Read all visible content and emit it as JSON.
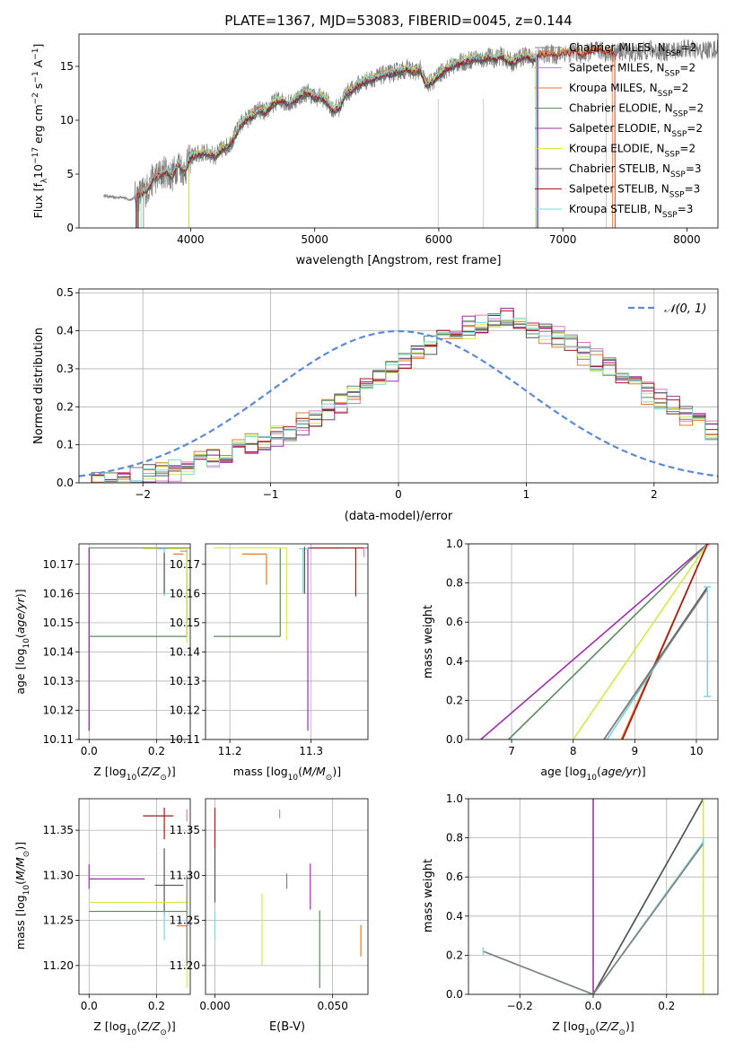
{
  "figure_title": "PLATE=1367, MJD=53083, FIBERID=0045, z=0.144",
  "models": [
    {
      "label": "Chabrier MILES, N$_{SSP}$=2",
      "label_base": "Chabrier MILES, N",
      "label_sub": "SSP",
      "label_tail": "=2",
      "color": "#808080"
    },
    {
      "label": "Salpeter MILES, N$_{SSP}$=2",
      "label_base": "Salpeter MILES, N",
      "label_sub": "SSP",
      "label_tail": "=2",
      "color": "#e377c2"
    },
    {
      "label": "Kroupa MILES, N$_{SSP}$=2",
      "label_base": "Kroupa MILES, N",
      "label_sub": "SSP",
      "label_tail": "=2",
      "color": "#e07b2a"
    },
    {
      "label": "Chabrier ELODIE, N$_{SSP}$=2",
      "label_base": "Chabrier ELODIE, N",
      "label_sub": "SSP",
      "label_tail": "=2",
      "color": "#5c8a5c"
    },
    {
      "label": "Salpeter ELODIE, N$_{SSP}$=2",
      "label_base": "Salpeter ELODIE, N",
      "label_sub": "SSP",
      "label_tail": "=2",
      "color": "#9b2fae"
    },
    {
      "label": "Kroupa ELODIE, N$_{SSP}$=2",
      "label_base": "Kroupa ELODIE, N",
      "label_sub": "SSP",
      "label_tail": "=2",
      "color": "#d4e84a"
    },
    {
      "label": "Chabrier STELIB, N$_{SSP}$=3",
      "label_base": "Chabrier STELIB, N",
      "label_sub": "SSP",
      "label_tail": "=3",
      "color": "#555555"
    },
    {
      "label": "Salpeter STELIB, N$_{SSP}$=3",
      "label_base": "Salpeter STELIB, N",
      "label_sub": "SSP",
      "label_tail": "=3",
      "color": "#a01a1a"
    },
    {
      "label": "Kroupa STELIB, N$_{SSP}$=3",
      "label_base": "Kroupa STELIB, N",
      "label_sub": "SSP",
      "label_tail": "=3",
      "color": "#7fd4d8"
    }
  ],
  "chart_data": [
    {
      "id": "spectrum",
      "type": "line",
      "xlabel": "wavelength [Angstrom, rest frame]",
      "ylabel": "Flux [f$_\\lambda$10$^{-17}$ erg cm$^{-2}$ s$^{-1}$ A$^{-1}$]",
      "ylabel_display": "Flux [fλ10⁻¹⁷ erg cm⁻² s⁻¹ A⁻¹]",
      "xlim": [
        3100,
        8250
      ],
      "ylim": [
        0,
        18
      ],
      "xticks": [
        4000,
        5000,
        6000,
        7000,
        8000
      ],
      "yticks": [
        0,
        5,
        10,
        15
      ],
      "legend": "top-right",
      "data_color": "#808080",
      "model_range": [
        3550,
        7420
      ],
      "data_x": [
        3300,
        3350,
        3400,
        3450,
        3500,
        3550,
        3600,
        3650,
        3700,
        3750,
        3800,
        3850,
        3900,
        3950,
        4000,
        4050,
        4100,
        4150,
        4200,
        4250,
        4300,
        4350,
        4400,
        4450,
        4500,
        4550,
        4600,
        4650,
        4700,
        4750,
        4800,
        4850,
        4900,
        4950,
        5000,
        5050,
        5100,
        5150,
        5200,
        5250,
        5300,
        5350,
        5400,
        5450,
        5500,
        5550,
        5600,
        5650,
        5700,
        5750,
        5800,
        5850,
        5900,
        5950,
        6000,
        6050,
        6100,
        6150,
        6200,
        6250,
        6300,
        6350,
        6400,
        6450,
        6500,
        6550,
        6600,
        6650,
        6700,
        6750,
        6800,
        6850,
        6900,
        6950,
        7000,
        7050,
        7100,
        7150,
        7200,
        7250,
        7300,
        7350,
        7400
      ],
      "data_y": [
        3.0,
        2.9,
        2.8,
        2.9,
        2.6,
        2.8,
        3.2,
        3.6,
        4.6,
        4.9,
        5.3,
        4.8,
        6.0,
        5.2,
        6.6,
        6.8,
        7.0,
        6.9,
        6.7,
        7.3,
        7.6,
        8.4,
        9.6,
        10.1,
        10.4,
        11.0,
        10.7,
        11.4,
        11.9,
        11.8,
        11.5,
        12.0,
        12.4,
        12.6,
        12.1,
        12.2,
        11.7,
        11.0,
        11.2,
        12.5,
        12.8,
        13.3,
        13.6,
        13.8,
        14.0,
        14.2,
        14.3,
        14.5,
        14.6,
        14.8,
        14.5,
        14.7,
        13.3,
        13.6,
        14.2,
        14.7,
        15.0,
        15.3,
        15.4,
        15.6,
        15.8,
        15.6,
        15.9,
        15.7,
        16.0,
        15.6,
        15.3,
        15.8,
        16.0,
        15.7,
        15.9,
        16.1,
        16.2,
        16.0,
        16.3,
        16.2,
        16.4,
        16.0,
        16.3,
        16.4,
        16.5,
        16.2,
        16.3
      ],
      "data_x_red": [
        7400,
        7500,
        7600,
        7700,
        7800,
        7900,
        8000,
        8100,
        8200
      ],
      "data_y_red": [
        16.1,
        16.4,
        16.2,
        16.6,
        16.3,
        16.5,
        16.7,
        16.4,
        16.6
      ]
    },
    {
      "id": "residual_hist",
      "type": "line",
      "xlabel": "(data-model)/error",
      "ylabel": "Normed distribution",
      "xlim": [
        -2.5,
        2.5
      ],
      "ylim": [
        0,
        0.51
      ],
      "xticks": [
        -2,
        -1,
        0,
        1,
        2
      ],
      "yticks": [
        0.0,
        0.1,
        0.2,
        0.3,
        0.4,
        0.5
      ],
      "legend": "top-right",
      "normal_label": "$\\mathcal{N}(0,1)$",
      "normal_label_display": "𝒩(0, 1)",
      "normal_color": "#5b8bd6",
      "bin_edges_start": -2.5,
      "bin_width": 0.1,
      "hist_base": [
        0.005,
        0.008,
        0.012,
        0.016,
        0.02,
        0.025,
        0.03,
        0.038,
        0.045,
        0.055,
        0.062,
        0.072,
        0.085,
        0.098,
        0.11,
        0.125,
        0.14,
        0.16,
        0.175,
        0.195,
        0.215,
        0.235,
        0.26,
        0.28,
        0.3,
        0.32,
        0.345,
        0.36,
        0.375,
        0.39,
        0.405,
        0.41,
        0.42,
        0.425,
        0.415,
        0.405,
        0.395,
        0.38,
        0.36,
        0.34,
        0.32,
        0.3,
        0.28,
        0.255,
        0.235,
        0.215,
        0.195,
        0.175,
        0.155,
        0.135
      ]
    },
    {
      "id": "age_vs_Z",
      "type": "scatter",
      "xlabel": "Z [log$_{10}$(Z/Z$_\\odot$)]",
      "ylabel": "age  [log$_{10}$(age/yr)]",
      "xlim": [
        -0.03,
        0.3
      ],
      "ylim": [
        10.11,
        10.177
      ],
      "xticks": [
        0.0,
        0.2
      ],
      "yticks": [
        10.11,
        10.12,
        10.13,
        10.14,
        10.15,
        10.16,
        10.17
      ]
    },
    {
      "id": "age_vs_mass",
      "type": "scatter",
      "xlabel": "mass [log$_{10}$(M/M$_\\odot$)]",
      "xlim": [
        11.17,
        11.37
      ],
      "ylim": [
        10.11,
        10.177
      ],
      "xticks": [
        11.2,
        11.3
      ],
      "yticks": [
        10.11,
        10.12,
        10.13,
        10.14,
        10.15,
        10.16,
        10.17
      ]
    },
    {
      "id": "massweight_vs_age",
      "type": "line",
      "xlabel": "age  [log$_{10}$(age/yr)]",
      "ylabel": "mass weight",
      "xlim": [
        6.3,
        10.35
      ],
      "ylim": [
        0,
        1
      ],
      "xticks": [
        7,
        8,
        9,
        10
      ],
      "yticks": [
        0.0,
        0.2,
        0.4,
        0.6,
        0.8,
        1.0
      ]
    },
    {
      "id": "mass_vs_Z",
      "type": "scatter",
      "xlabel": "Z [log$_{10}$(Z/Z$_\\odot$)]",
      "ylabel": "mass [log$_{10}$(M/M$_\\odot$)]",
      "xlim": [
        -0.03,
        0.3
      ],
      "ylim": [
        11.168,
        11.385
      ],
      "xticks": [
        0.0,
        0.2
      ],
      "yticks": [
        11.2,
        11.25,
        11.3,
        11.35
      ]
    },
    {
      "id": "mass_vs_ebv",
      "type": "scatter",
      "xlabel": "E(B-V)",
      "xlim": [
        -0.004,
        0.065
      ],
      "ylim": [
        11.168,
        11.385
      ],
      "xticks": [
        0.0,
        0.05
      ],
      "yticks": [
        11.2,
        11.25,
        11.3,
        11.35
      ]
    },
    {
      "id": "massweight_vs_Z",
      "type": "line",
      "xlabel": "Z [log$_{10}$(Z/Z$_\\odot$)]",
      "ylabel": "mass weight",
      "xlim": [
        -0.34,
        0.34
      ],
      "ylim": [
        0,
        1
      ],
      "xticks": [
        -0.2,
        0.0,
        0.2
      ],
      "yticks": [
        0.0,
        0.2,
        0.4,
        0.6,
        0.8,
        1.0
      ]
    }
  ]
}
